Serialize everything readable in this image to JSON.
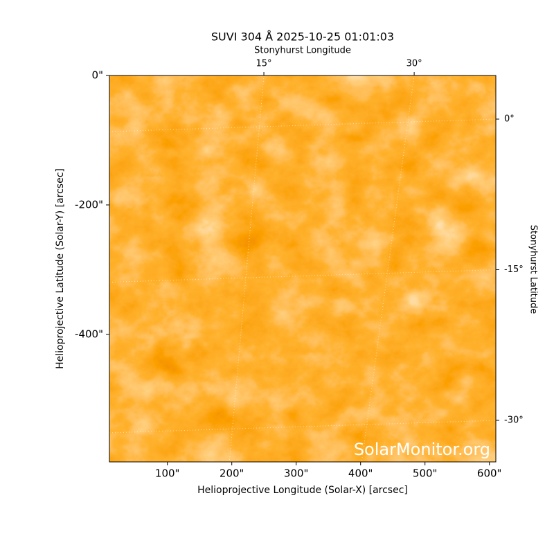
{
  "chart_data": {
    "type": "image",
    "title": "SUVI 304 Å 2025-10-25 01:01:03",
    "xlabel": "Helioprojective Longitude (Solar-X) [arcsec]",
    "ylabel": "Helioprojective Latitude (Solar-Y) [arcsec]",
    "x2label": "Stonyhurst Longitude",
    "y2label": "Stonyhurst Latitude",
    "xlim": [
      10,
      610
    ],
    "ylim": [
      -597,
      0
    ],
    "xticks": [
      {
        "value": 100,
        "label": "100\""
      },
      {
        "value": 200,
        "label": "200\""
      },
      {
        "value": 300,
        "label": "300\""
      },
      {
        "value": 400,
        "label": "400\""
      },
      {
        "value": 500,
        "label": "500\""
      },
      {
        "value": 600,
        "label": "600\""
      }
    ],
    "yticks": [
      {
        "value": 0,
        "label": "0\""
      },
      {
        "value": -200,
        "label": "-200\""
      },
      {
        "value": -400,
        "label": "-400\""
      }
    ],
    "x2ticks": [
      {
        "value": 15,
        "label": "15°"
      },
      {
        "value": 30,
        "label": "30°"
      }
    ],
    "y2ticks": [
      {
        "value": 0,
        "label": "0°"
      },
      {
        "value": -15,
        "label": "-15°"
      },
      {
        "value": -30,
        "label": "-30°"
      }
    ],
    "watermark": "SolarMonitor.org"
  }
}
